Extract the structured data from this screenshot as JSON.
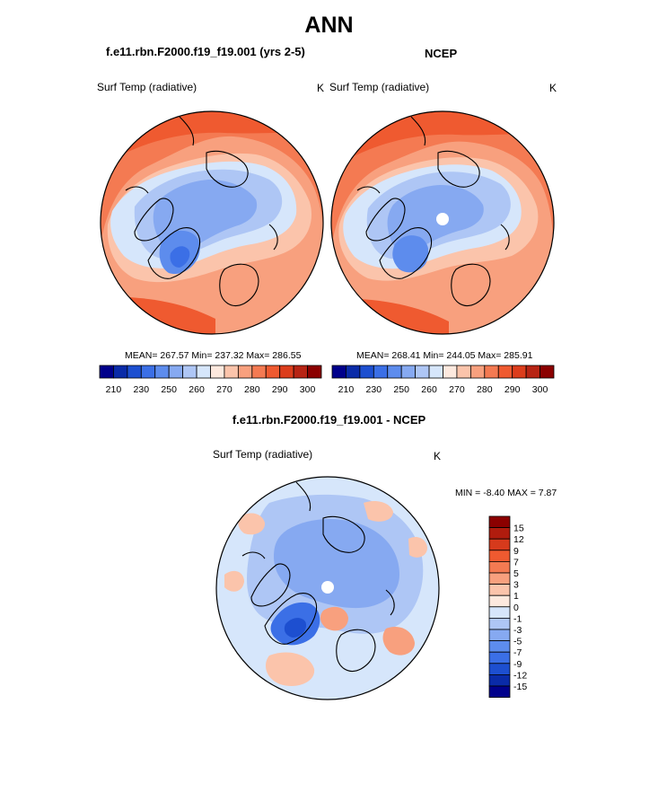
{
  "page": {
    "title": "ANN"
  },
  "panels": [
    {
      "id": "model",
      "header": "f.e11.rbn.F2000.f19_f19.001 (yrs 2-5)",
      "variable": "Surf Temp (radiative)",
      "units": "K",
      "stats": "MEAN= 267.57  Min= 237.32  Max= 286.55"
    },
    {
      "id": "obs",
      "header": "NCEP",
      "variable": "Surf Temp (radiative)",
      "units": "K",
      "stats": "MEAN= 268.41  Min= 244.05  Max= 285.91"
    },
    {
      "id": "diff",
      "header": "f.e11.rbn.F2000.f19_f19.001 - NCEP",
      "variable": "Surf Temp (radiative)",
      "units": "K",
      "stats": "MIN =  -8.40 MAX =   7.87"
    }
  ],
  "colorbar_abs": {
    "labels": [
      "210",
      "230",
      "250",
      "260",
      "270",
      "280",
      "290",
      "300"
    ],
    "colors": [
      "#00008b",
      "#0a2ba8",
      "#1d4fd0",
      "#3b6fe6",
      "#5d8ced",
      "#86a9f1",
      "#aec6f5",
      "#d6e6fb",
      "#fde9de",
      "#fbc4ab",
      "#f8a07e",
      "#f47a52",
      "#ef5a30",
      "#dc3d1c",
      "#b72414",
      "#8b0000"
    ]
  },
  "colorbar_diff": {
    "labels": [
      "15",
      "12",
      "9",
      "7",
      "5",
      "3",
      "1",
      "0",
      "-1",
      "-3",
      "-5",
      "-7",
      "-9",
      "-12",
      "-15"
    ],
    "colors": [
      "#8b0000",
      "#b01c0e",
      "#d63a1c",
      "#ef5a30",
      "#f47a52",
      "#f8a07e",
      "#fbc4ab",
      "#fde9de",
      "#d6e6fb",
      "#aec6f5",
      "#86a9f1",
      "#5d8ced",
      "#3b6fe6",
      "#1d4fd0",
      "#0a2ba8",
      "#00008b"
    ]
  }
}
